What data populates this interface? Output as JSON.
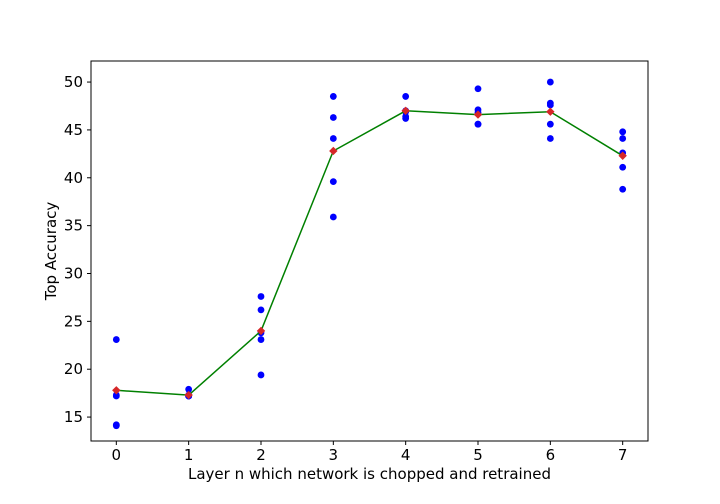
{
  "chart_data": {
    "type": "scatter",
    "title": "",
    "xlabel": "Layer n which network is chopped and retrained",
    "ylabel": "Top Accuracy",
    "xlim": [
      -0.35,
      7.35
    ],
    "ylim": [
      12.5,
      52.2
    ],
    "xticks": [
      0,
      1,
      2,
      3,
      4,
      5,
      6,
      7
    ],
    "yticks": [
      15,
      20,
      25,
      30,
      35,
      40,
      45,
      50
    ],
    "grid": false,
    "legend": "none",
    "colors": {
      "points": "#0000ff",
      "mean_line": "#008000",
      "mean_markers": "#d62728"
    },
    "series": [
      {
        "kind": "scatter",
        "x": [
          0,
          0,
          0,
          0,
          0,
          1,
          1,
          1,
          1,
          1,
          2,
          2,
          2,
          2,
          2,
          3,
          3,
          3,
          3,
          3,
          4,
          4,
          4,
          4,
          4,
          5,
          5,
          5,
          5,
          5,
          6,
          6,
          6,
          6,
          6,
          7,
          7,
          7,
          7,
          7
        ],
        "y": [
          23.1,
          17.3,
          17.2,
          14.2,
          14.1,
          17.9,
          17.3,
          17.2,
          17.2,
          17.2,
          27.6,
          26.2,
          23.1,
          23.8,
          19.4,
          48.5,
          46.3,
          44.1,
          39.6,
          35.9,
          48.5,
          47.0,
          46.9,
          46.4,
          46.2,
          49.3,
          47.1,
          46.8,
          45.6,
          45.6,
          50.0,
          47.8,
          47.6,
          45.6,
          44.1,
          44.8,
          44.1,
          42.6,
          41.1,
          38.8
        ]
      },
      {
        "kind": "line+diamond",
        "x": [
          0,
          1,
          2,
          3,
          4,
          5,
          6,
          7
        ],
        "y": [
          17.8,
          17.3,
          24.0,
          42.8,
          47.0,
          46.6,
          46.9,
          42.3
        ]
      }
    ]
  }
}
